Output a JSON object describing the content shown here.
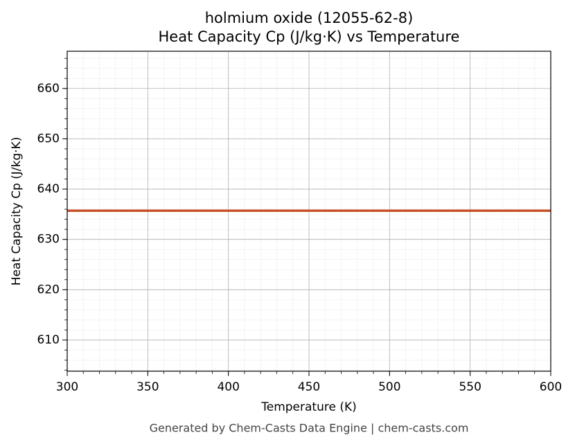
{
  "chart_data": {
    "type": "line",
    "title": "holmium oxide (12055-62-8)",
    "subtitle": "Heat Capacity Cp (J/kg·K) vs Temperature",
    "x_label": "Temperature (K)",
    "y_label": "Heat Capacity Cp (J/kg·K)",
    "footer": "Generated by Chem-Casts Data Engine | chem-casts.com",
    "x": [
      300,
      600
    ],
    "series": [
      {
        "name": "Heat Capacity Cp",
        "color": "#c8522a",
        "values": [
          635.7,
          635.7
        ]
      }
    ],
    "xlim": [
      300,
      600
    ],
    "xticks": [
      300,
      350,
      400,
      450,
      500,
      550,
      600
    ],
    "ylim": [
      603.8,
      667.4
    ],
    "yticks": [
      610,
      620,
      630,
      640,
      650,
      660
    ],
    "grid": true,
    "minor_grid": true
  }
}
